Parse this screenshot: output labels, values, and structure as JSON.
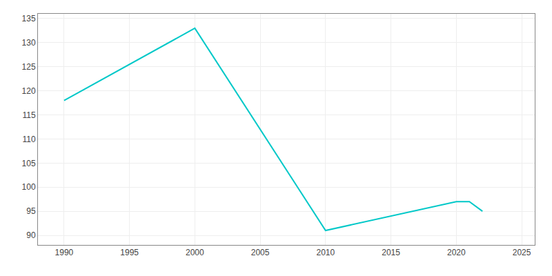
{
  "chart_data": {
    "type": "line",
    "x": [
      1990,
      2000,
      2010,
      2020,
      2021,
      2022
    ],
    "values": [
      118,
      133,
      91,
      97,
      97,
      95
    ],
    "color": "#00C8C8",
    "xlim": [
      1988,
      2026
    ],
    "ylim": [
      88,
      136
    ],
    "xticks": [
      1990,
      1995,
      2000,
      2005,
      2010,
      2015,
      2020,
      2025
    ],
    "yticks": [
      90,
      95,
      100,
      105,
      110,
      115,
      120,
      125,
      130,
      135
    ],
    "grid": true
  }
}
